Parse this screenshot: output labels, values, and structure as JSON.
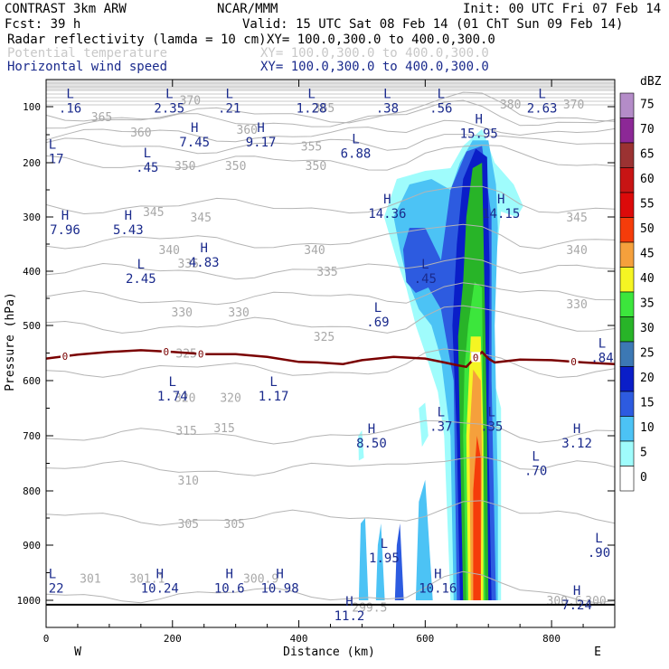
{
  "header": {
    "model": "CONTRAST  3km ARW",
    "source": "NCAR/MMM",
    "init": "Init: 00 UTC Fri 07 Feb 14",
    "fcst": "Fcst:   39 h",
    "valid": "Valid: 15 UTC Sat 08 Feb 14 (01 ChT Sun 09 Feb 14)",
    "field1_name": "Radar reflectivity (lamda = 10 cm)",
    "field1_xy": "XY= 100.0,300.0 to 400.0,300.0",
    "field2_name": "Potential temperature",
    "field2_xy": "XY= 100.0,300.0 to 400.0,300.0",
    "field3_name": "Horizontal wind speed",
    "field3_xy": "XY= 100.0,300.0 to 400.0,300.0"
  },
  "colors": {
    "theta": "#b4b4b4",
    "wind_labels": "#1a2a8c",
    "freezing": "#7a0000"
  },
  "chart_data": {
    "type": "heatmap",
    "xlabel": "Distance (km)",
    "ylabel": "Pressure (hPa)",
    "xlim": [
      0,
      900
    ],
    "ylim": [
      1000,
      55
    ],
    "x_ticks": [
      0,
      200,
      400,
      600,
      800
    ],
    "y_ticks": [
      100,
      200,
      300,
      400,
      500,
      600,
      700,
      800,
      900,
      1000
    ],
    "west_label": "W",
    "east_label": "E",
    "colorbar": {
      "unit": "dBZ",
      "levels": [
        0,
        5,
        10,
        15,
        20,
        25,
        30,
        35,
        40,
        45,
        50,
        55,
        60,
        65,
        70,
        75
      ],
      "colors": [
        "#ffffff",
        "#9ffcfc",
        "#4cc3f5",
        "#2d5be0",
        "#0a1ec8",
        "#3c78b4",
        "#28b428",
        "#3ce63c",
        "#f5f523",
        "#f5a03c",
        "#f53c0a",
        "#dc0a0a",
        "#c81414",
        "#9b3232",
        "#8c2896",
        "#b48cc8"
      ]
    },
    "reflectivity_regions": [
      {
        "dbz": 5,
        "outline": [
          [
            535,
            300
          ],
          [
            555,
            230
          ],
          [
            600,
            215
          ],
          [
            640,
            210
          ],
          [
            660,
            170
          ],
          [
            690,
            140
          ],
          [
            710,
            200
          ],
          [
            740,
            240
          ],
          [
            755,
            280
          ],
          [
            745,
            300
          ],
          [
            720,
            290
          ],
          [
            710,
            400
          ],
          [
            700,
            560
          ],
          [
            720,
            650
          ],
          [
            720,
            1000
          ],
          [
            640,
            1000
          ],
          [
            630,
            700
          ],
          [
            620,
            620
          ],
          [
            600,
            550
          ],
          [
            585,
            500
          ],
          [
            570,
            430
          ],
          [
            555,
            380
          ]
        ]
      },
      {
        "dbz": 10,
        "outline": [
          [
            550,
            300
          ],
          [
            575,
            240
          ],
          [
            610,
            230
          ],
          [
            640,
            250
          ],
          [
            655,
            200
          ],
          [
            675,
            160
          ],
          [
            700,
            160
          ],
          [
            712,
            240
          ],
          [
            715,
            320
          ],
          [
            710,
            500
          ],
          [
            715,
            800
          ],
          [
            715,
            1000
          ],
          [
            645,
            1000
          ],
          [
            640,
            700
          ],
          [
            625,
            560
          ],
          [
            610,
            500
          ],
          [
            590,
            470
          ],
          [
            570,
            410
          ],
          [
            560,
            360
          ]
        ]
      },
      {
        "dbz": 15,
        "outline": [
          [
            565,
            360
          ],
          [
            575,
            320
          ],
          [
            600,
            320
          ],
          [
            625,
            380
          ],
          [
            640,
            250
          ],
          [
            665,
            180
          ],
          [
            690,
            170
          ],
          [
            705,
            300
          ],
          [
            705,
            600
          ],
          [
            712,
            1000
          ],
          [
            650,
            1000
          ],
          [
            645,
            600
          ],
          [
            625,
            470
          ],
          [
            605,
            430
          ],
          [
            585,
            440
          ],
          [
            570,
            420
          ]
        ]
      },
      {
        "dbz": 20,
        "outline": [
          [
            660,
            230
          ],
          [
            680,
            175
          ],
          [
            698,
            190
          ],
          [
            702,
            400
          ],
          [
            700,
            700
          ],
          [
            705,
            1000
          ],
          [
            655,
            1000
          ],
          [
            650,
            700
          ],
          [
            643,
            500
          ],
          [
            650,
            350
          ]
        ]
      },
      {
        "dbz": 30,
        "outline": [
          [
            665,
            300
          ],
          [
            675,
            210
          ],
          [
            690,
            200
          ],
          [
            695,
            500
          ],
          [
            698,
            700
          ],
          [
            700,
            1000
          ],
          [
            660,
            1000
          ],
          [
            655,
            700
          ],
          [
            652,
            520
          ],
          [
            660,
            420
          ]
        ]
      },
      {
        "dbz": 35,
        "outline": [
          [
            668,
            500
          ],
          [
            678,
            420
          ],
          [
            690,
            430
          ],
          [
            692,
            700
          ],
          [
            695,
            1000
          ],
          [
            665,
            1000
          ],
          [
            660,
            700
          ],
          [
            662,
            580
          ]
        ]
      },
      {
        "dbz": 40,
        "outline": [
          [
            665,
            700
          ],
          [
            672,
            520
          ],
          [
            688,
            520
          ],
          [
            692,
            700
          ],
          [
            692,
            1000
          ],
          [
            668,
            1000
          ]
        ]
      },
      {
        "dbz": 45,
        "outline": [
          [
            670,
            700
          ],
          [
            676,
            580
          ],
          [
            688,
            600
          ],
          [
            690,
            750
          ],
          [
            688,
            1000
          ],
          [
            672,
            1000
          ]
        ]
      },
      {
        "dbz": 50,
        "outline": [
          [
            676,
            800
          ],
          [
            682,
            700
          ],
          [
            688,
            740
          ],
          [
            688,
            1000
          ],
          [
            676,
            1000
          ]
        ]
      },
      {
        "dbz": 10,
        "outline": [
          [
            498,
            860
          ],
          [
            505,
            850
          ],
          [
            510,
            1000
          ],
          [
            495,
            1000
          ]
        ]
      },
      {
        "dbz": 10,
        "outline": [
          [
            525,
            900
          ],
          [
            530,
            860
          ],
          [
            536,
            1000
          ],
          [
            522,
            1000
          ]
        ]
      },
      {
        "dbz": 15,
        "outline": [
          [
            555,
            900
          ],
          [
            560,
            860
          ],
          [
            566,
            1000
          ],
          [
            552,
            1000
          ]
        ]
      },
      {
        "dbz": 10,
        "outline": [
          [
            590,
            820
          ],
          [
            600,
            780
          ],
          [
            612,
            1000
          ],
          [
            585,
            1000
          ]
        ]
      },
      {
        "dbz": 5,
        "outline": [
          [
            590,
            650
          ],
          [
            600,
            640
          ],
          [
            605,
            700
          ],
          [
            595,
            720
          ]
        ]
      },
      {
        "dbz": 5,
        "outline": [
          [
            494,
            700
          ],
          [
            500,
            690
          ],
          [
            503,
            740
          ],
          [
            495,
            745
          ]
        ]
      }
    ],
    "theta_contours": [
      {
        "label": "370",
        "y": 115
      },
      {
        "label": "365",
        "y": 125
      },
      {
        "label": "360",
        "y": 150
      },
      {
        "label": "355",
        "y": 170
      },
      {
        "label": "350",
        "y": 200
      },
      {
        "label": "345",
        "y": 280
      },
      {
        "label": "340",
        "y": 345
      },
      {
        "label": "335",
        "y": 400
      },
      {
        "label": "330",
        "y": 450
      },
      {
        "label": "325",
        "y": 500
      },
      {
        "label": "320",
        "y": 580
      },
      {
        "label": "315",
        "y": 700
      },
      {
        "label": "310",
        "y": 760
      },
      {
        "label": "305",
        "y": 850
      },
      {
        "label": "301",
        "y": 990
      }
    ],
    "theta_labels": [
      {
        "text": "380",
        "x": 735,
        "p": 95
      },
      {
        "text": "370",
        "x": 835,
        "p": 95
      },
      {
        "text": "370",
        "x": 228,
        "p": 88
      },
      {
        "text": "365",
        "x": 88,
        "p": 118
      },
      {
        "text": "365",
        "x": 440,
        "p": 102
      },
      {
        "text": "360",
        "x": 150,
        "p": 145
      },
      {
        "text": "360",
        "x": 318,
        "p": 140
      },
      {
        "text": "355",
        "x": 420,
        "p": 170
      },
      {
        "text": "350",
        "x": 220,
        "p": 205
      },
      {
        "text": "350",
        "x": 300,
        "p": 205
      },
      {
        "text": "350",
        "x": 427,
        "p": 205
      },
      {
        "text": "345",
        "x": 170,
        "p": 290
      },
      {
        "text": "345",
        "x": 245,
        "p": 300
      },
      {
        "text": "345",
        "x": 840,
        "p": 300
      },
      {
        "text": "340",
        "x": 195,
        "p": 360
      },
      {
        "text": "340",
        "x": 425,
        "p": 360
      },
      {
        "text": "340",
        "x": 840,
        "p": 360
      },
      {
        "text": "335",
        "x": 225,
        "p": 385
      },
      {
        "text": "335",
        "x": 445,
        "p": 400
      },
      {
        "text": "330",
        "x": 215,
        "p": 475
      },
      {
        "text": "330",
        "x": 305,
        "p": 475
      },
      {
        "text": "330",
        "x": 840,
        "p": 460
      },
      {
        "text": "325",
        "x": 440,
        "p": 520
      },
      {
        "text": "325",
        "x": 222,
        "p": 550
      },
      {
        "text": "320",
        "x": 220,
        "p": 630
      },
      {
        "text": "320",
        "x": 292,
        "p": 630
      },
      {
        "text": "315",
        "x": 222,
        "p": 690
      },
      {
        "text": "315",
        "x": 282,
        "p": 685
      },
      {
        "text": "310",
        "x": 225,
        "p": 780
      },
      {
        "text": "305",
        "x": 225,
        "p": 860
      },
      {
        "text": "305",
        "x": 298,
        "p": 860
      },
      {
        "text": "301",
        "x": 70,
        "p": 960
      },
      {
        "text": "301.1",
        "x": 160,
        "p": 960
      },
      {
        "text": "300.9",
        "x": 340,
        "p": 960
      },
      {
        "text": "299.5",
        "x": 512,
        "p": 1012
      },
      {
        "text": "300.6",
        "x": 820,
        "p": 1000
      },
      {
        "text": "300",
        "x": 870,
        "p": 1000
      }
    ],
    "freezing_level": {
      "label": "0",
      "points": [
        [
          0,
          560
        ],
        [
          50,
          553
        ],
        [
          100,
          548
        ],
        [
          150,
          545
        ],
        [
          200,
          548
        ],
        [
          250,
          552
        ],
        [
          300,
          552
        ],
        [
          350,
          557
        ],
        [
          400,
          566
        ],
        [
          430,
          567
        ],
        [
          470,
          570
        ],
        [
          500,
          563
        ],
        [
          550,
          557
        ],
        [
          600,
          560
        ],
        [
          630,
          567
        ],
        [
          650,
          572
        ],
        [
          665,
          575
        ],
        [
          675,
          563
        ],
        [
          690,
          548
        ],
        [
          700,
          560
        ],
        [
          710,
          567
        ],
        [
          750,
          562
        ],
        [
          800,
          563
        ],
        [
          850,
          567
        ],
        [
          900,
          570
        ]
      ],
      "label_x": [
        30,
        190,
        245,
        680,
        835
      ]
    },
    "wind_labels": [
      {
        "kind": "L",
        "value": ".16",
        "x": 38,
        "p": 85
      },
      {
        "kind": "L",
        "value": "2.35",
        "x": 195,
        "p": 85
      },
      {
        "kind": "L",
        "value": ".21",
        "x": 290,
        "p": 85
      },
      {
        "kind": "L",
        "value": "1.28",
        "x": 420,
        "p": 85
      },
      {
        "kind": "L",
        "value": ".38",
        "x": 540,
        "p": 85
      },
      {
        "kind": "L",
        "value": ".56",
        "x": 625,
        "p": 85
      },
      {
        "kind": "L",
        "value": "2.63",
        "x": 785,
        "p": 85
      },
      {
        "kind": "H",
        "value": "15.95",
        "x": 685,
        "p": 130
      },
      {
        "kind": "H",
        "value": "7.45",
        "x": 235,
        "p": 145
      },
      {
        "kind": "H",
        "value": "9.17",
        "x": 340,
        "p": 145
      },
      {
        "kind": "L",
        "value": "6.88",
        "x": 490,
        "p": 165
      },
      {
        "kind": "L",
        "value": ".17",
        "x": 10,
        "p": 175
      },
      {
        "kind": "L",
        "value": ".45",
        "x": 160,
        "p": 190
      },
      {
        "kind": "H",
        "value": "14.36",
        "x": 540,
        "p": 275
      },
      {
        "kind": "H",
        "value": "14.15",
        "x": 720,
        "p": 275
      },
      {
        "kind": "H",
        "value": "7.96",
        "x": 30,
        "p": 305
      },
      {
        "kind": "H",
        "value": "5.43",
        "x": 130,
        "p": 305
      },
      {
        "kind": "H",
        "value": "4.83",
        "x": 250,
        "p": 365
      },
      {
        "kind": "L",
        "value": "2.45",
        "x": 150,
        "p": 395
      },
      {
        "kind": "L",
        "value": ".45",
        "x": 600,
        "p": 395
      },
      {
        "kind": "L",
        "value": ".69",
        "x": 525,
        "p": 475
      },
      {
        "kind": "L",
        "value": ".84",
        "x": 880,
        "p": 540
      },
      {
        "kind": "L",
        "value": "1.74",
        "x": 200,
        "p": 610
      },
      {
        "kind": "L",
        "value": "1.17",
        "x": 360,
        "p": 610
      },
      {
        "kind": "L",
        "value": ".37",
        "x": 625,
        "p": 665
      },
      {
        "kind": "L",
        "value": ".35",
        "x": 705,
        "p": 665
      },
      {
        "kind": "H",
        "value": "8.50",
        "x": 515,
        "p": 695
      },
      {
        "kind": "H",
        "value": "3.12",
        "x": 840,
        "p": 695
      },
      {
        "kind": "L",
        "value": ".70",
        "x": 775,
        "p": 745
      },
      {
        "kind": "L",
        "value": "1.95",
        "x": 535,
        "p": 905
      },
      {
        "kind": "L",
        "value": ".90",
        "x": 875,
        "p": 895
      },
      {
        "kind": "L",
        "value": ".22",
        "x": 10,
        "p": 960
      },
      {
        "kind": "H",
        "value": "10.24",
        "x": 180,
        "p": 960
      },
      {
        "kind": "H",
        "value": "10.6",
        "x": 290,
        "p": 960
      },
      {
        "kind": "H",
        "value": "10.98",
        "x": 370,
        "p": 960
      },
      {
        "kind": "H",
        "value": "10.16",
        "x": 620,
        "p": 960
      },
      {
        "kind": "H",
        "value": "7.24",
        "x": 840,
        "p": 990
      },
      {
        "kind": "H",
        "value": "11.2",
        "x": 480,
        "p": 1010
      }
    ]
  }
}
